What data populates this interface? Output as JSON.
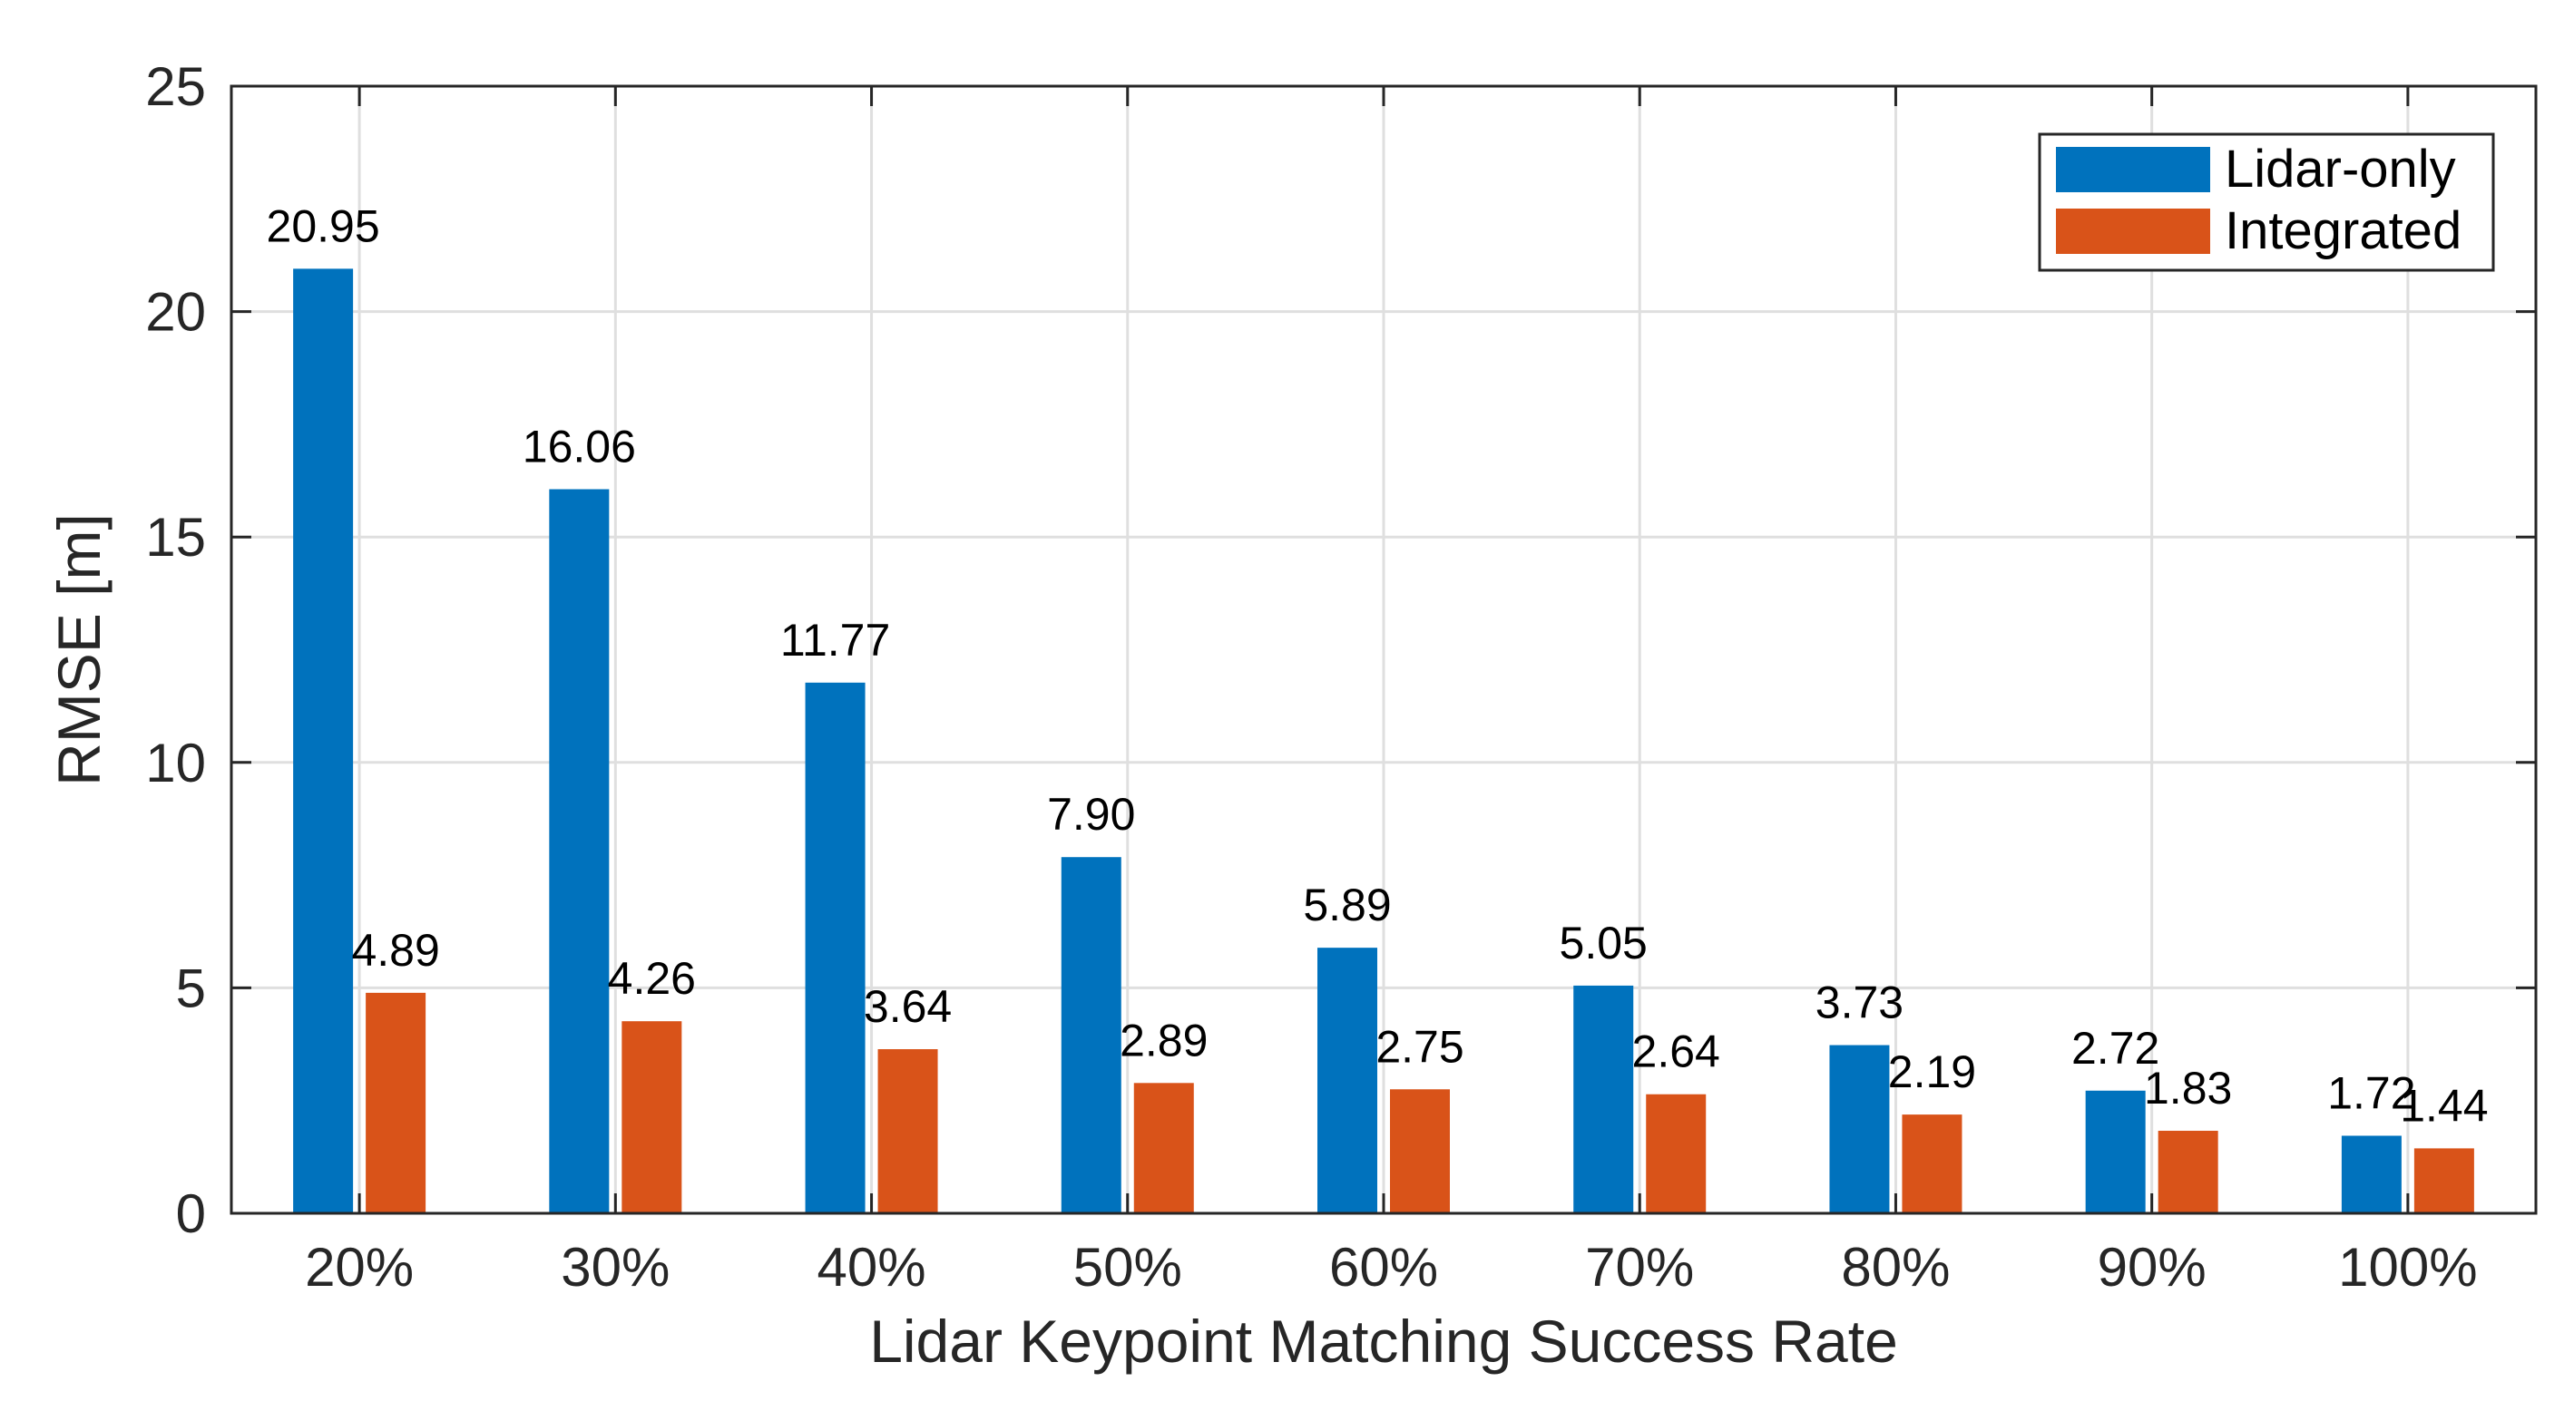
{
  "chart_data": {
    "type": "bar",
    "title": "",
    "xlabel": "Lidar Keypoint Matching Success Rate",
    "ylabel": "RMSE [m]",
    "ylim": [
      0,
      25
    ],
    "yticks": [
      0,
      5,
      10,
      15,
      20,
      25
    ],
    "grid": true,
    "legend_position": "top-right",
    "categories": [
      "20%",
      "30%",
      "40%",
      "50%",
      "60%",
      "70%",
      "80%",
      "90%",
      "100%"
    ],
    "series": [
      {
        "name": "Lidar-only",
        "color": "#0072bd",
        "values": [
          20.95,
          16.06,
          11.77,
          7.9,
          5.89,
          5.05,
          3.73,
          2.72,
          1.72
        ],
        "labels": [
          "20.95",
          "16.06",
          "11.77",
          "7.90",
          "5.89",
          "5.05",
          "3.73",
          "2.72",
          "1.72"
        ]
      },
      {
        "name": "Integrated",
        "color": "#d95319",
        "values": [
          4.89,
          4.26,
          3.64,
          2.89,
          2.75,
          2.64,
          2.19,
          1.83,
          1.44
        ],
        "labels": [
          "4.89",
          "4.26",
          "3.64",
          "2.89",
          "2.75",
          "2.64",
          "2.19",
          "1.83",
          "1.44"
        ]
      }
    ]
  }
}
